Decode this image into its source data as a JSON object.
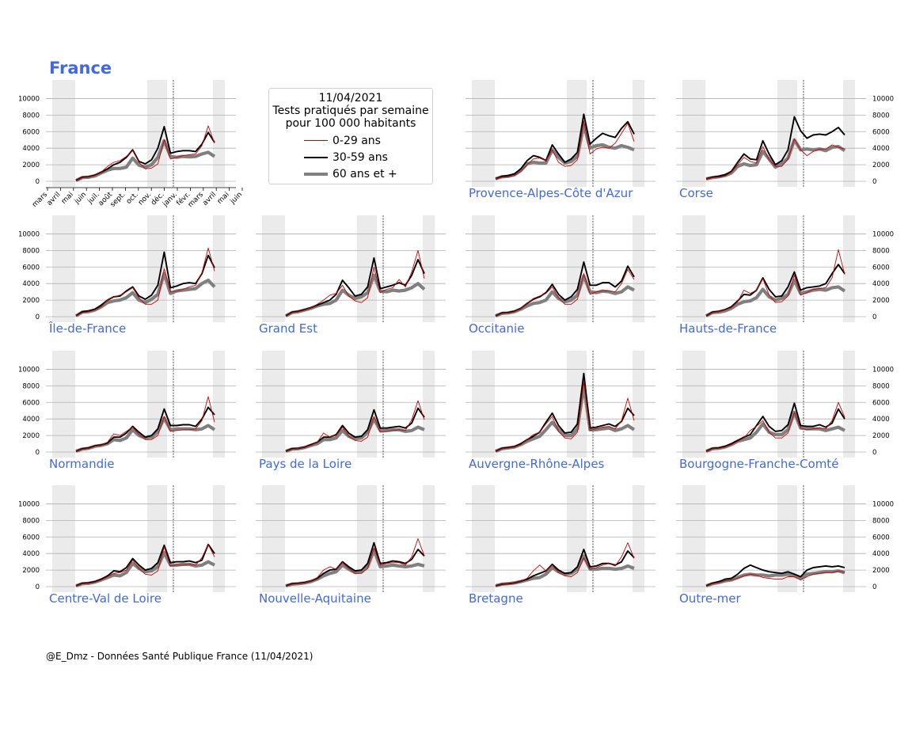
{
  "header": {
    "title": "France"
  },
  "legend": {
    "date": "11/04/2021",
    "line1": "Tests pratiqués par semaine",
    "line2": "pour 100 000 habitants",
    "items": [
      {
        "label": "0-29 ans",
        "color": "#cc0000"
      },
      {
        "label": "30-59 ans",
        "color": "#000000"
      },
      {
        "label": "60 ans et +",
        "color": "#808080"
      }
    ]
  },
  "footer": {
    "credit": "@E_Dmz - Données Santé Publique France (11/04/2021)"
  },
  "chart_data": {
    "type": "line",
    "title": "Tests pratiqués par semaine pour 100 000 habitants",
    "x_tick_labels": [
      "mars",
      "avril",
      "mai",
      "juin",
      "juil.",
      "août",
      "sept.",
      "oct.",
      "nov.",
      "déc.",
      "janv.",
      "févr.",
      "mars",
      "avril",
      "mai",
      "juin"
    ],
    "y_tick_labels": [
      "0",
      "2000",
      "4000",
      "6000",
      "8000",
      "10000"
    ],
    "ylim": [
      0,
      11000
    ],
    "grid": "horizontal",
    "shaded_periods": [
      "mars-mai 2020 (confinement 1)",
      "nov.-déc. 2020 (confinement 2)",
      "avril 2021 (confinement 3)"
    ],
    "regions": [
      {
        "name": "France",
        "s029": [
          100,
          450,
          520,
          700,
          1100,
          1800,
          2300,
          2500,
          3000,
          3700,
          2300,
          1500,
          1600,
          2100,
          5000,
          2700,
          2900,
          3100,
          3200,
          3300,
          4300,
          6700,
          4600
        ],
        "s3059": [
          100,
          500,
          550,
          750,
          1100,
          1500,
          2000,
          2300,
          2900,
          3800,
          2400,
          2100,
          2600,
          4000,
          6600,
          3400,
          3600,
          3700,
          3700,
          3600,
          4500,
          5900,
          4700
        ],
        "s60": [
          100,
          450,
          500,
          650,
          1000,
          1350,
          1550,
          1550,
          1700,
          2800,
          1950,
          1700,
          2000,
          2900,
          4900,
          3000,
          2900,
          3000,
          2950,
          3000,
          3300,
          3500,
          3000
        ]
      },
      {
        "name": "Provence-Alpes-Côte d'Azur",
        "s029": [
          300,
          500,
          550,
          700,
          1200,
          2000,
          2700,
          2800,
          2500,
          3800,
          2300,
          1800,
          1900,
          2600,
          7300,
          3300,
          3900,
          4100,
          4000,
          4600,
          5800,
          7000,
          4800
        ],
        "s3059": [
          300,
          600,
          700,
          900,
          1500,
          2500,
          3100,
          2900,
          2500,
          4400,
          3300,
          2300,
          2700,
          3500,
          8100,
          4500,
          5200,
          5800,
          5500,
          5300,
          6400,
          7200,
          5700
        ],
        "s60": [
          300,
          550,
          600,
          800,
          1300,
          2100,
          2300,
          2200,
          2200,
          3800,
          2900,
          2200,
          2400,
          3000,
          6800,
          4000,
          4300,
          4400,
          4100,
          4000,
          4300,
          4100,
          3800
        ]
      },
      {
        "name": "Corse",
        "s029": [
          300,
          450,
          500,
          650,
          1100,
          2000,
          2900,
          2400,
          2200,
          4200,
          2600,
          1800,
          1800,
          2700,
          5100,
          3800,
          3100,
          3600,
          3900,
          3900,
          4400,
          4100,
          3900
        ],
        "s3059": [
          300,
          500,
          600,
          800,
          1200,
          2300,
          3300,
          2700,
          2600,
          4900,
          3300,
          2000,
          2500,
          3800,
          7800,
          6100,
          5200,
          5600,
          5700,
          5600,
          6000,
          6500,
          5600
        ],
        "s60": [
          300,
          450,
          550,
          700,
          1000,
          1800,
          2100,
          1900,
          2000,
          3600,
          2700,
          1700,
          2100,
          2800,
          5000,
          3800,
          3900,
          3800,
          3900,
          3700,
          4100,
          4200,
          3700
        ]
      },
      {
        "name": "Île-de-France",
        "s029": [
          100,
          500,
          600,
          800,
          1200,
          2000,
          2400,
          2600,
          3000,
          3500,
          2300,
          1500,
          1500,
          2000,
          5800,
          3000,
          3100,
          3300,
          3600,
          3800,
          5300,
          8300,
          5500
        ],
        "s3059": [
          100,
          600,
          700,
          900,
          1400,
          2000,
          2400,
          2500,
          3100,
          3600,
          2500,
          2100,
          2600,
          3800,
          7800,
          3500,
          3700,
          4000,
          4100,
          4000,
          5200,
          7400,
          5900
        ],
        "s60": [
          100,
          550,
          600,
          800,
          1200,
          1700,
          1900,
          2000,
          2300,
          2900,
          2000,
          1700,
          2100,
          2700,
          5200,
          2800,
          3100,
          3200,
          3300,
          3400,
          4000,
          4400,
          3600
        ]
      },
      {
        "name": "Grand Est",
        "s029": [
          100,
          500,
          600,
          800,
          1100,
          1500,
          2000,
          2600,
          2800,
          3800,
          2500,
          1900,
          1700,
          2300,
          6000,
          2900,
          3300,
          3500,
          4500,
          3600,
          5400,
          8000,
          4600
        ],
        "s3059": [
          100,
          550,
          650,
          850,
          1100,
          1400,
          1700,
          2000,
          2700,
          4400,
          3500,
          2500,
          2700,
          3600,
          7100,
          3400,
          3600,
          3800,
          4100,
          3800,
          5000,
          6900,
          5200
        ],
        "s60": [
          100,
          500,
          600,
          800,
          1000,
          1300,
          1500,
          1600,
          2000,
          3200,
          2600,
          2200,
          2400,
          2900,
          5000,
          3100,
          3000,
          3200,
          3100,
          3200,
          3500,
          4000,
          3300
        ]
      },
      {
        "name": "Occitanie",
        "s029": [
          100,
          400,
          450,
          600,
          1000,
          1600,
          2200,
          2500,
          2800,
          3600,
          2300,
          1500,
          1500,
          2100,
          5200,
          2700,
          3000,
          3100,
          3100,
          3000,
          4000,
          5700,
          4500
        ],
        "s3059": [
          100,
          450,
          500,
          650,
          1000,
          1600,
          2100,
          2400,
          2900,
          3900,
          2700,
          2000,
          2400,
          3300,
          6600,
          3800,
          3800,
          4100,
          4100,
          3600,
          4300,
          6100,
          4800
        ],
        "s60": [
          100,
          400,
          450,
          600,
          900,
          1300,
          1600,
          1700,
          2000,
          3000,
          2200,
          1800,
          2000,
          2600,
          4900,
          3000,
          2900,
          3100,
          3000,
          2800,
          3000,
          3600,
          3200
        ]
      },
      {
        "name": "Hauts-de-France",
        "s029": [
          100,
          500,
          600,
          800,
          1100,
          1800,
          3200,
          2800,
          3200,
          4600,
          2600,
          1700,
          1800,
          2500,
          5000,
          2600,
          2900,
          3300,
          3400,
          3500,
          4700,
          8100,
          5100
        ],
        "s3059": [
          100,
          550,
          650,
          850,
          1200,
          1900,
          2700,
          2600,
          3200,
          4700,
          3300,
          2400,
          2500,
          3600,
          5400,
          3200,
          3500,
          3600,
          3700,
          4000,
          5200,
          6300,
          5200
        ],
        "s60": [
          100,
          500,
          550,
          700,
          1000,
          1500,
          1800,
          1900,
          2300,
          3300,
          2400,
          2000,
          2200,
          2700,
          4400,
          2800,
          3000,
          3200,
          3300,
          3200,
          3500,
          3600,
          3100
        ]
      },
      {
        "name": "Normandie",
        "s029": [
          100,
          350,
          450,
          700,
          800,
          1200,
          2200,
          2000,
          2500,
          3000,
          2100,
          1500,
          1500,
          2000,
          4300,
          2500,
          2600,
          2700,
          2700,
          2800,
          3800,
          6700,
          3600
        ],
        "s3059": [
          100,
          400,
          500,
          750,
          850,
          1100,
          1800,
          1800,
          2300,
          3100,
          2400,
          1800,
          2000,
          2800,
          5200,
          3200,
          3200,
          3300,
          3300,
          3100,
          4000,
          5400,
          4500
        ],
        "s60": [
          100,
          350,
          450,
          700,
          800,
          1000,
          1500,
          1400,
          1700,
          2700,
          2000,
          1700,
          1800,
          2500,
          4100,
          2700,
          2800,
          2800,
          2800,
          2700,
          2800,
          3200,
          2700
        ]
      },
      {
        "name": "Pays de la Loire",
        "s029": [
          100,
          350,
          450,
          600,
          800,
          1200,
          2300,
          1800,
          2000,
          3000,
          1900,
          1400,
          1300,
          1800,
          4300,
          2400,
          2500,
          2600,
          2700,
          2600,
          3900,
          6200,
          3900
        ],
        "s3059": [
          100,
          400,
          450,
          600,
          900,
          1200,
          1800,
          1800,
          2100,
          3200,
          2300,
          1800,
          1900,
          2700,
          5100,
          2900,
          2900,
          3000,
          3100,
          2900,
          3500,
          5300,
          4200
        ],
        "s60": [
          100,
          350,
          400,
          550,
          800,
          1000,
          1500,
          1500,
          1700,
          2600,
          1900,
          1600,
          1700,
          2400,
          4000,
          2600,
          2600,
          2700,
          2700,
          2500,
          2600,
          3000,
          2700
        ]
      },
      {
        "name": "Auvergne-Rhône-Alpes",
        "s029": [
          100,
          400,
          500,
          600,
          900,
          1500,
          2100,
          2400,
          3400,
          4300,
          2500,
          1700,
          1600,
          2400,
          8500,
          2600,
          2800,
          3000,
          3100,
          2800,
          3800,
          6500,
          3800
        ],
        "s3059": [
          100,
          450,
          550,
          650,
          1000,
          1500,
          1900,
          2400,
          3600,
          4700,
          3200,
          2300,
          2400,
          3400,
          9500,
          2900,
          3000,
          3200,
          3400,
          3100,
          3700,
          5300,
          4400
        ],
        "s60": [
          100,
          400,
          500,
          600,
          900,
          1300,
          1600,
          1900,
          2700,
          3600,
          2700,
          2000,
          2000,
          2800,
          8000,
          2700,
          2700,
          2800,
          2900,
          2600,
          2800,
          3200,
          2700
        ]
      },
      {
        "name": "Bourgogne-Franche-Comté",
        "s029": [
          100,
          400,
          450,
          600,
          900,
          1300,
          1700,
          2600,
          3100,
          3800,
          2400,
          1700,
          1700,
          2300,
          4800,
          2900,
          2700,
          2800,
          2900,
          2800,
          3800,
          6000,
          4200
        ],
        "s3059": [
          100,
          450,
          500,
          700,
          1000,
          1400,
          1800,
          2100,
          3200,
          4300,
          3100,
          2500,
          2600,
          3300,
          5900,
          3200,
          3100,
          3100,
          3300,
          3000,
          3500,
          5200,
          4000
        ],
        "s60": [
          100,
          400,
          450,
          600,
          900,
          1300,
          1500,
          1700,
          2400,
          3400,
          2400,
          2100,
          2100,
          2700,
          4800,
          2900,
          2800,
          2800,
          2800,
          2600,
          2800,
          3000,
          2600
        ]
      },
      {
        "name": "Centre-Val de Loire",
        "s029": [
          100,
          350,
          400,
          550,
          800,
          1200,
          1600,
          1700,
          2000,
          3200,
          2200,
          1500,
          1400,
          1900,
          4800,
          2500,
          2600,
          2600,
          2700,
          2600,
          3500,
          5100,
          3600
        ],
        "s3059": [
          100,
          400,
          450,
          600,
          900,
          1300,
          1900,
          1800,
          2300,
          3400,
          2600,
          2000,
          2200,
          2900,
          5000,
          2900,
          3000,
          3000,
          3100,
          2900,
          3200,
          5100,
          4000
        ],
        "s60": [
          100,
          350,
          400,
          550,
          800,
          1100,
          1400,
          1300,
          1700,
          2800,
          2200,
          1800,
          1900,
          2400,
          4100,
          2600,
          2600,
          2700,
          2700,
          2500,
          2600,
          3000,
          2600
        ]
      },
      {
        "name": "Nouvelle-Aquitaine",
        "s029": [
          100,
          300,
          350,
          500,
          700,
          1100,
          2000,
          2400,
          2100,
          2900,
          2200,
          1600,
          1600,
          2200,
          4700,
          2600,
          2800,
          2900,
          2900,
          2600,
          3600,
          5800,
          3700
        ],
        "s3059": [
          100,
          350,
          400,
          500,
          700,
          1000,
          1600,
          2000,
          2100,
          3000,
          2400,
          1900,
          2000,
          2800,
          5300,
          2800,
          2900,
          3100,
          3000,
          2800,
          3300,
          4500,
          3700
        ],
        "s60": [
          100,
          300,
          350,
          450,
          600,
          900,
          1300,
          1600,
          1800,
          2600,
          2100,
          1700,
          1800,
          2400,
          4400,
          2400,
          2500,
          2600,
          2500,
          2400,
          2500,
          2700,
          2500
        ]
      },
      {
        "name": "Bretagne",
        "s029": [
          100,
          300,
          350,
          450,
          650,
          1000,
          1900,
          2600,
          1900,
          2600,
          1700,
          1300,
          1200,
          1700,
          3500,
          2100,
          2300,
          2600,
          2800,
          2500,
          3600,
          5300,
          3400
        ],
        "s3059": [
          100,
          300,
          350,
          450,
          650,
          900,
          1300,
          1600,
          1900,
          2700,
          2000,
          1600,
          1700,
          2400,
          4500,
          2400,
          2500,
          2800,
          2800,
          2600,
          3000,
          4300,
          3500
        ],
        "s60": [
          100,
          300,
          350,
          450,
          600,
          800,
          1000,
          1100,
          1500,
          2300,
          1800,
          1500,
          1600,
          2100,
          3700,
          2100,
          2100,
          2200,
          2200,
          2100,
          2200,
          2500,
          2200
        ]
      },
      {
        "name": "Outre-mer",
        "s029": [
          100,
          350,
          500,
          700,
          800,
          1000,
          1300,
          1500,
          1400,
          1100,
          1000,
          900,
          900,
          1200,
          1200,
          800,
          1200,
          1500,
          1600,
          1700,
          1700,
          1900,
          1700
        ],
        "s3059": [
          100,
          400,
          600,
          900,
          1000,
          1500,
          2200,
          2600,
          2300,
          2000,
          1800,
          1700,
          1600,
          1800,
          1500,
          1200,
          2000,
          2300,
          2400,
          2500,
          2400,
          2500,
          2300
        ],
        "s60": [
          100,
          350,
          500,
          700,
          800,
          1100,
          1400,
          1500,
          1400,
          1400,
          1300,
          1400,
          1400,
          1500,
          1300,
          1000,
          1500,
          1600,
          1700,
          1800,
          1800,
          1900,
          1700
        ]
      }
    ]
  }
}
